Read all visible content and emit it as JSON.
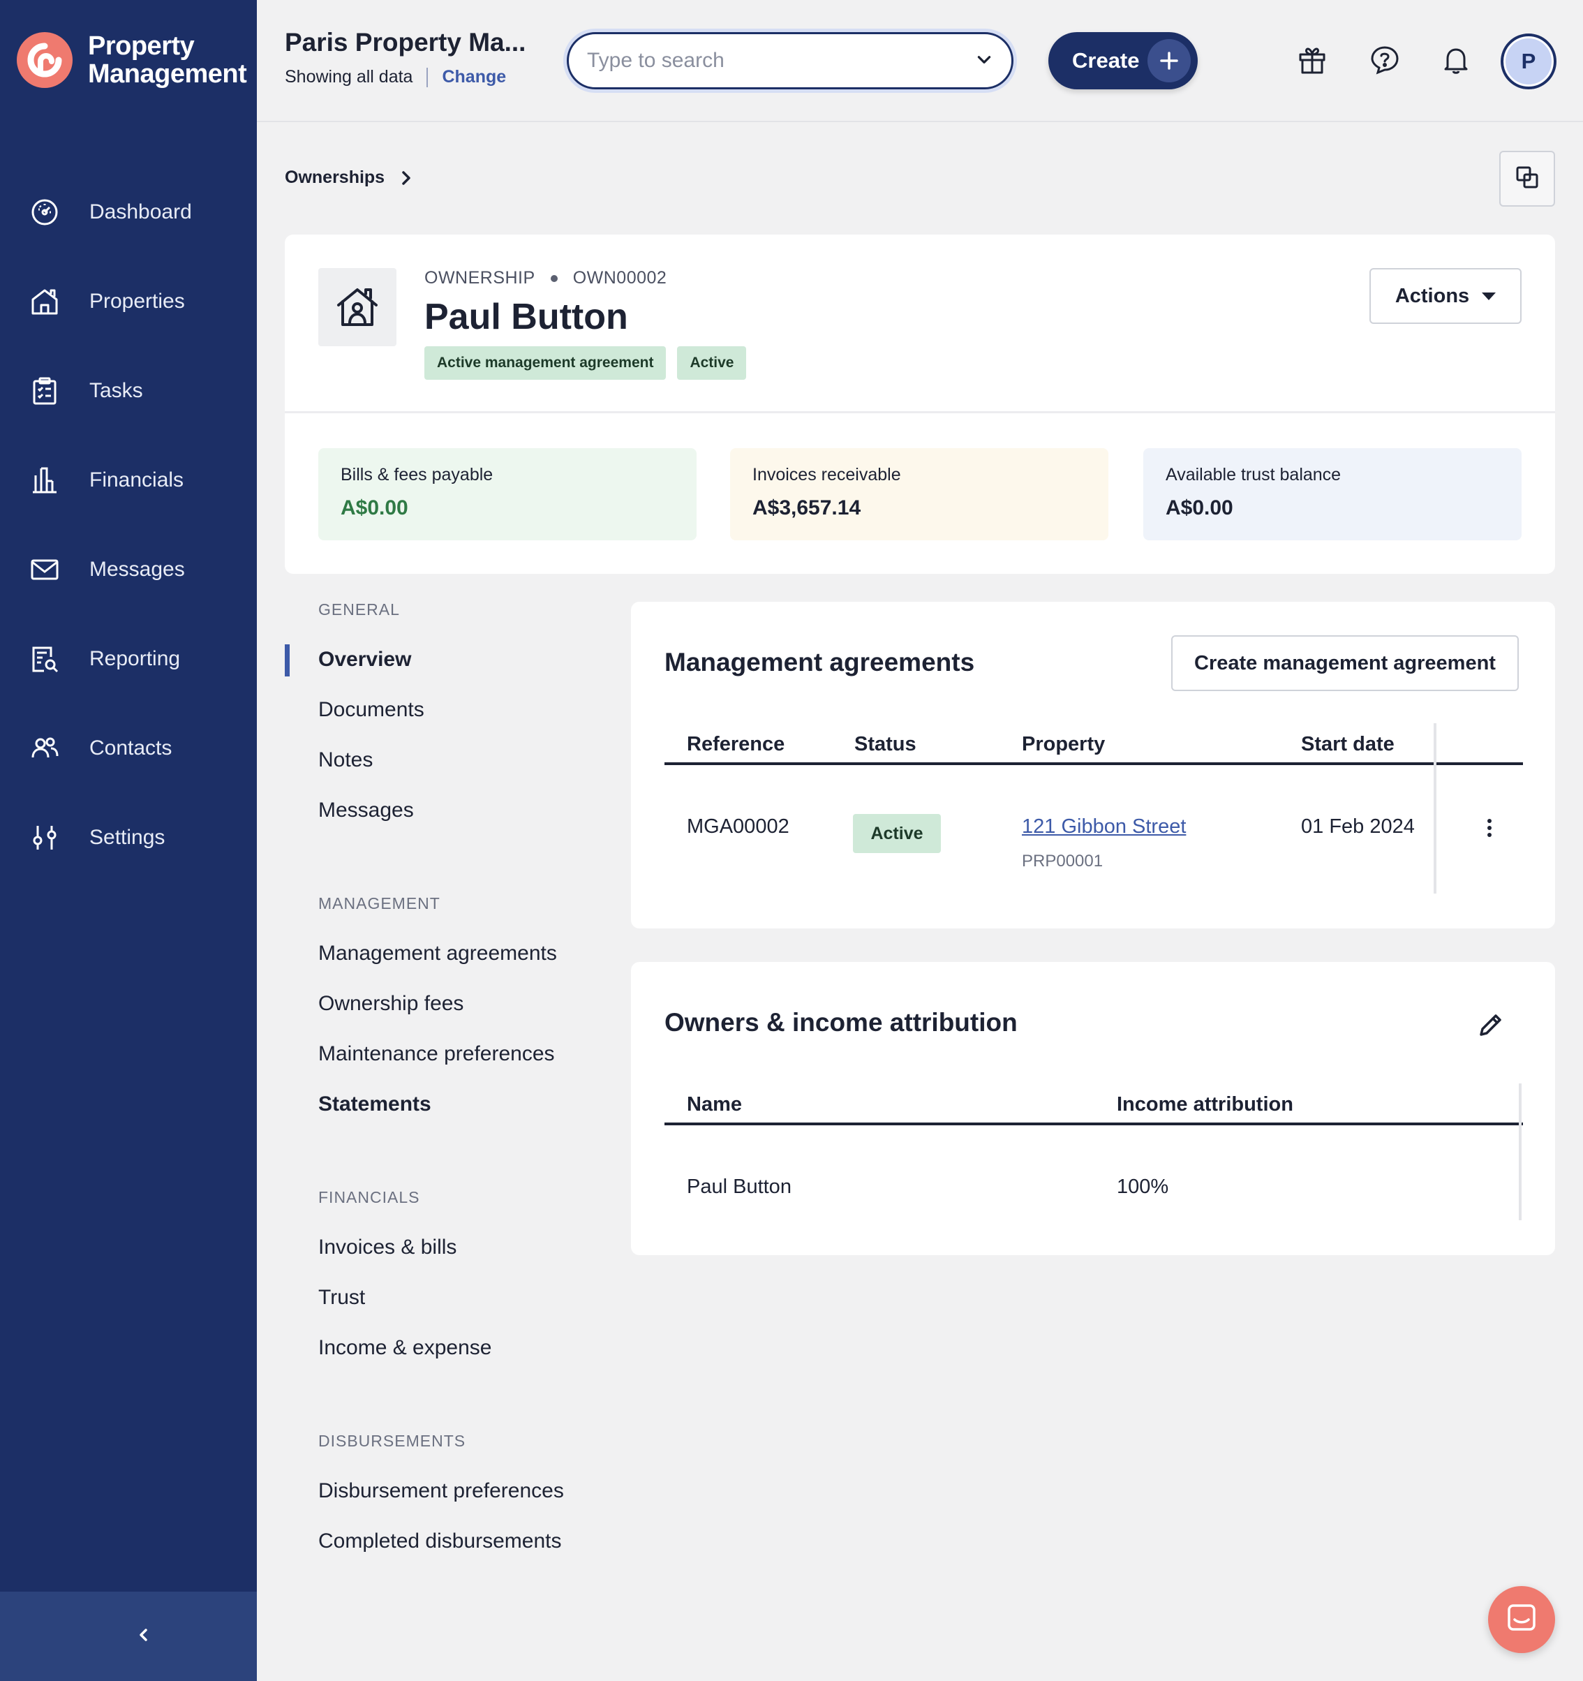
{
  "brand": {
    "name_line1": "Property",
    "name_line2": "Management",
    "logo_icon": "brand-logo-icon",
    "logo_color": "#ef7a6f"
  },
  "colors": {
    "sidebar": "#1c2f66",
    "accent": "#3d5aa8",
    "success_bg": "#cfe9d8",
    "chat": "#ef7a6f"
  },
  "sidebar": {
    "items": [
      {
        "label": "Dashboard",
        "icon": "dashboard-icon"
      },
      {
        "label": "Properties",
        "icon": "house-icon"
      },
      {
        "label": "Tasks",
        "icon": "clipboard-icon"
      },
      {
        "label": "Financials",
        "icon": "bank-icon"
      },
      {
        "label": "Messages",
        "icon": "envelope-icon"
      },
      {
        "label": "Reporting",
        "icon": "report-search-icon"
      },
      {
        "label": "Contacts",
        "icon": "people-icon"
      },
      {
        "label": "Settings",
        "icon": "sliders-icon"
      }
    ],
    "collapse_icon": "chevron-left-icon"
  },
  "topbar": {
    "org_name": "Paris Property Ma...",
    "showing": "Showing all data",
    "change_label": "Change",
    "search_placeholder": "Type to search",
    "create_label": "Create",
    "icons": [
      "gift-icon",
      "help-icon",
      "bell-icon"
    ],
    "avatar_initial": "P"
  },
  "breadcrumb": {
    "item": "Ownerships"
  },
  "header": {
    "type_label": "OWNERSHIP",
    "reference": "OWN00002",
    "title": "Paul Button",
    "badges": [
      "Active management agreement",
      "Active"
    ],
    "actions_label": "Actions"
  },
  "stats": [
    {
      "label": "Bills & fees payable",
      "value": "A$0.00",
      "bg": "#edf7ef",
      "color": "#2f7a45"
    },
    {
      "label": "Invoices receivable",
      "value": "A$3,657.14",
      "bg": "#fdf8ec",
      "color": "#1d2233"
    },
    {
      "label": "Available trust balance",
      "value": "A$0.00",
      "bg": "#eff3fa",
      "color": "#1d2233"
    }
  ],
  "subnav": {
    "general_heading": "GENERAL",
    "general": [
      "Overview",
      "Documents",
      "Notes",
      "Messages"
    ],
    "management_heading": "MANAGEMENT",
    "management": [
      "Management agreements",
      "Ownership fees",
      "Maintenance preferences",
      "Statements"
    ],
    "financials_heading": "FINANCIALS",
    "financials": [
      "Invoices & bills",
      "Trust",
      "Income & expense"
    ],
    "disbursements_heading": "DISBURSEMENTS",
    "disbursements": [
      "Disbursement preferences",
      "Completed disbursements"
    ]
  },
  "management_agreements": {
    "title": "Management agreements",
    "create_label": "Create management agreement",
    "columns": [
      "Reference",
      "Status",
      "Property",
      "Start date"
    ],
    "rows": [
      {
        "reference": "MGA00002",
        "status": "Active",
        "property": "121 Gibbon Street",
        "property_ref": "PRP00001",
        "start_date": "01 Feb 2024"
      }
    ]
  },
  "owners": {
    "title": "Owners & income attribution",
    "columns": [
      "Name",
      "Income attribution"
    ],
    "rows": [
      {
        "name": "Paul Button",
        "attribution": "100%"
      }
    ]
  }
}
